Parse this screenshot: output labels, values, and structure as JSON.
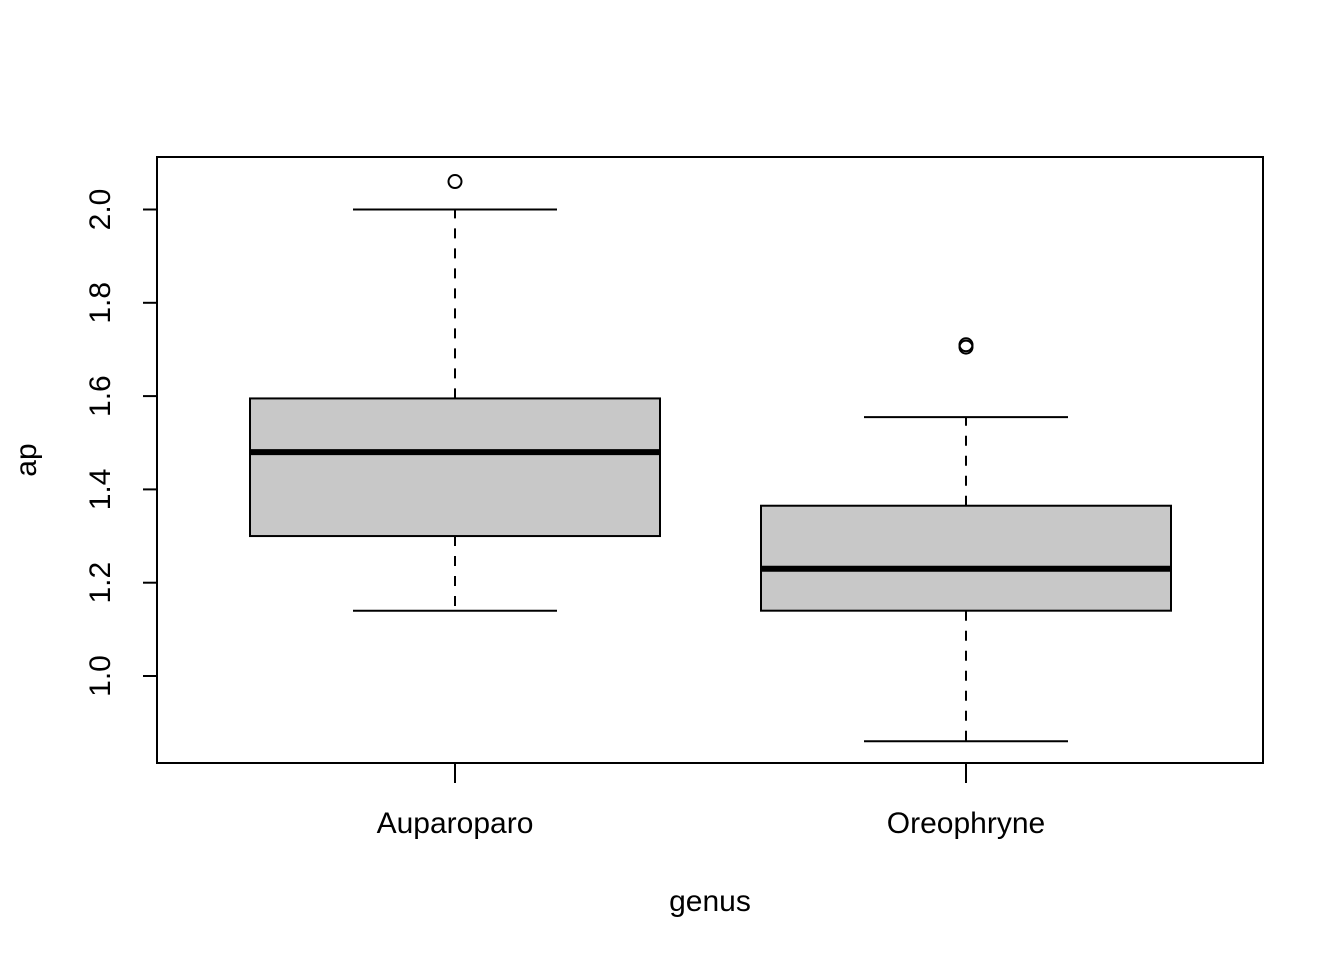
{
  "chart_data": {
    "type": "boxplot",
    "xlabel": "genus",
    "ylabel": "ap",
    "ylim": [
      0.81,
      2.11
    ],
    "yticks": [
      "1.0",
      "1.2",
      "1.4",
      "1.6",
      "1.8",
      "2.0"
    ],
    "categories": [
      "Auparoparo",
      "Oreophryne"
    ],
    "boxes": [
      {
        "category": "Auparoparo",
        "whisker_low": 1.14,
        "q1": 1.3,
        "median": 1.48,
        "q3": 1.595,
        "whisker_high": 2.0,
        "outliers": [
          2.06
        ]
      },
      {
        "category": "Oreophryne",
        "whisker_low": 0.86,
        "q1": 1.14,
        "median": 1.23,
        "q3": 1.365,
        "whisker_high": 1.555,
        "outliers": [
          1.705,
          1.71
        ]
      }
    ],
    "box_fill": "#c8c8c8",
    "grid": false,
    "legend": "none"
  }
}
